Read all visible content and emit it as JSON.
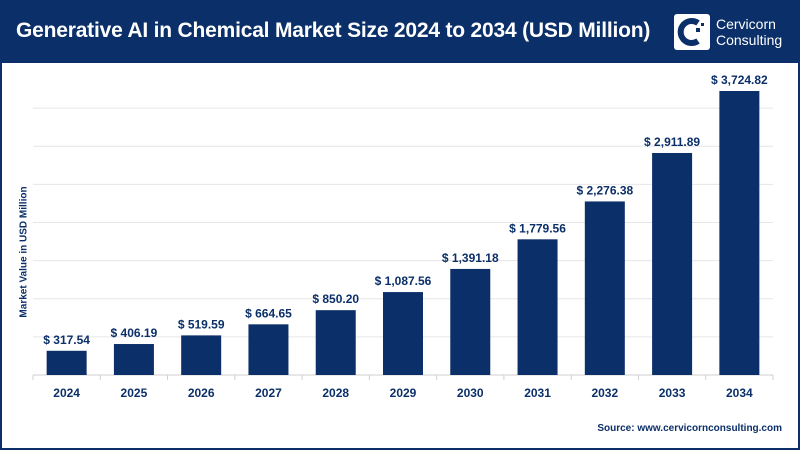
{
  "header": {
    "title": "Generative AI in Chemical Market Size 2024 to 2034 (USD Million)",
    "logo_line1": "Cervicorn",
    "logo_line2": "Consulting"
  },
  "source": "Source: www.cervicornconsulting.com",
  "colors": {
    "bar": "#0b2f68",
    "header": "#0b2f68",
    "grid": "#e6e6e6"
  },
  "chart_data": {
    "type": "bar",
    "title": "Generative AI in Chemical Market Size 2024 to 2034 (USD Million)",
    "xlabel": "",
    "ylabel": "Market Value in USD Million",
    "categories": [
      "2024",
      "2025",
      "2026",
      "2027",
      "2028",
      "2029",
      "2030",
      "2031",
      "2032",
      "2033",
      "2034"
    ],
    "values": [
      317.54,
      406.19,
      519.59,
      664.65,
      850.2,
      1087.56,
      1391.18,
      1779.56,
      2276.38,
      2911.89,
      3724.82
    ],
    "labels": [
      "$ 317.54",
      "$ 406.19",
      "$ 519.59",
      "$ 664.65",
      "$ 850.20",
      "$ 1,087.56",
      "$ 1,391.18",
      "$ 1,779.56",
      "$ 2,276.38",
      "$ 2,911.89",
      "$ 3,724.82"
    ],
    "ylim": [
      0,
      4000
    ],
    "grid_step": 500,
    "grid": true
  }
}
